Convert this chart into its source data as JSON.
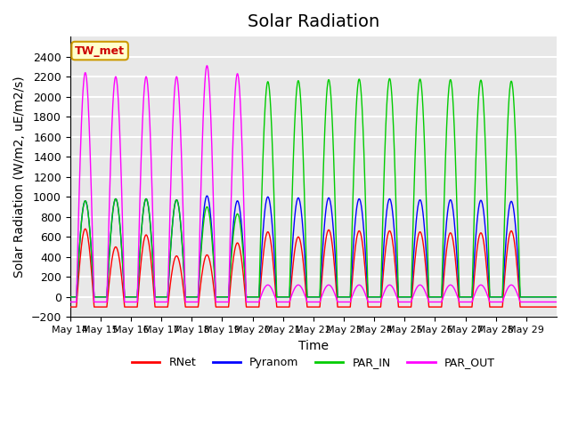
{
  "title": "Solar Radiation",
  "ylabel": "Solar Radiation (W/m2, uE/m2/s)",
  "xlabel": "Time",
  "ylim": [
    -200,
    2600
  ],
  "yticks": [
    -200,
    0,
    200,
    400,
    600,
    800,
    1000,
    1200,
    1400,
    1600,
    1800,
    2000,
    2200,
    2400
  ],
  "num_days": 16,
  "day_labels": [
    "May 14",
    "May 15",
    "May 16",
    "May 17",
    "May 18",
    "May 19",
    "May 20",
    "May 21",
    "May 22",
    "May 23",
    "May 24",
    "May 25",
    "May 26",
    "May 27",
    "May 28",
    "May 29"
  ],
  "colors": {
    "RNet": "#ff0000",
    "Pyranom": "#0000ff",
    "PAR_IN": "#00cc00",
    "PAR_OUT": "#ff00ff"
  },
  "station_label": "TW_met",
  "station_box_facecolor": "#ffffcc",
  "station_box_edgecolor": "#cc9900",
  "plot_background": "#e8e8e8",
  "grid_color": "#ffffff",
  "title_fontsize": 14,
  "label_fontsize": 10,
  "tick_fontsize": 9,
  "series": {
    "RNet": {
      "day_peaks": [
        680,
        500,
        620,
        410,
        420,
        540,
        650,
        600,
        670,
        660,
        660,
        650,
        640,
        640,
        660,
        0
      ],
      "night_val": -100
    },
    "Pyranom": {
      "day_peaks": [
        960,
        980,
        980,
        970,
        1010,
        960,
        1000,
        990,
        990,
        980,
        980,
        970,
        970,
        965,
        955,
        0
      ],
      "night_val": 0
    },
    "PAR_IN": {
      "day_peaks": [
        960,
        980,
        980,
        970,
        900,
        830,
        2150,
        2160,
        2170,
        2175,
        2180,
        2175,
        2170,
        2165,
        2155,
        0
      ],
      "night_val": 0
    },
    "PAR_OUT": {
      "day_peaks": [
        2240,
        2200,
        2200,
        2200,
        2310,
        2230,
        120,
        120,
        120,
        120,
        120,
        120,
        120,
        120,
        120,
        0
      ],
      "night_val": -50
    }
  }
}
